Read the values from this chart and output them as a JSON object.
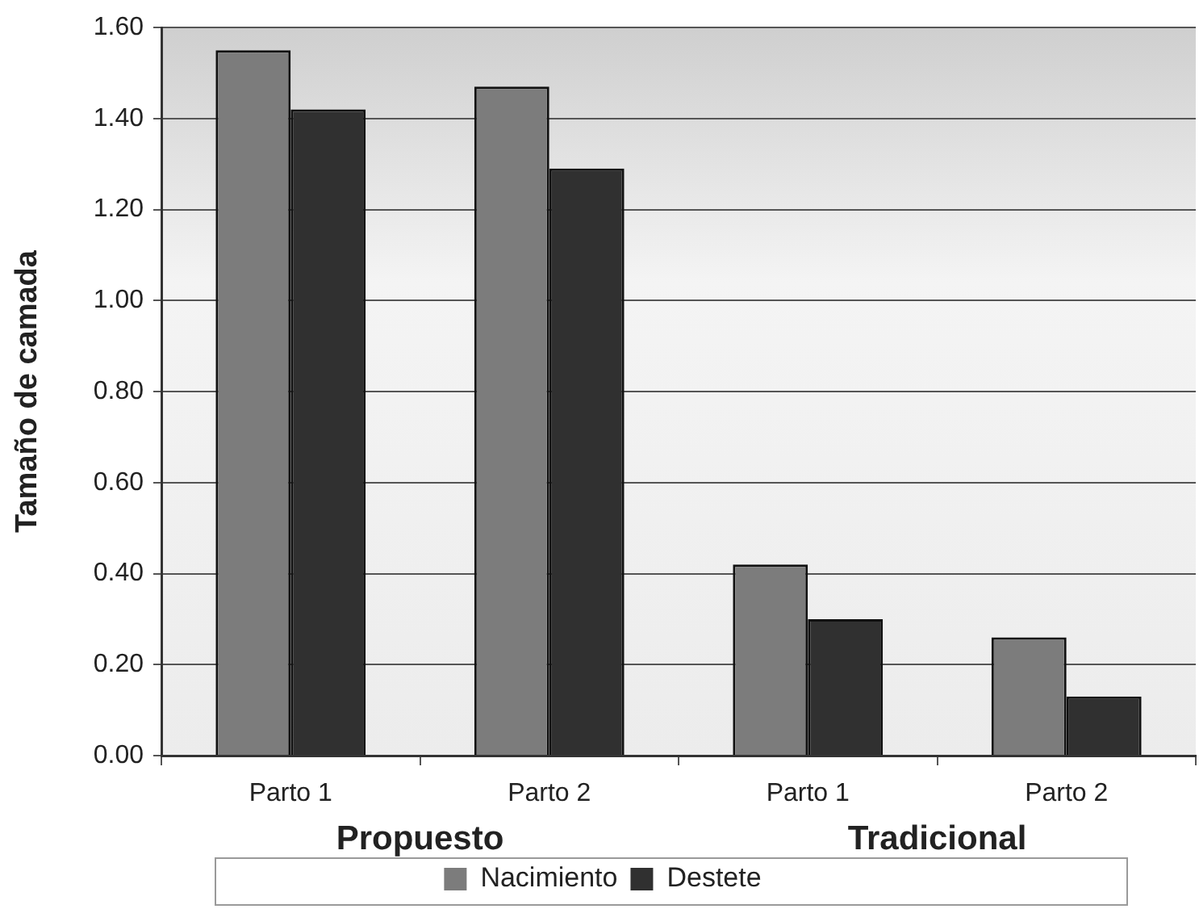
{
  "chart_data": {
    "type": "bar",
    "categories": [
      "Parto 1",
      "Parto 2",
      "Parto 1",
      "Parto 2"
    ],
    "series": [
      {
        "name": "Nacimiento",
        "color": "#7c7c7c",
        "values": [
          1.55,
          1.47,
          0.42,
          0.26
        ]
      },
      {
        "name": "Destete",
        "color": "#303030",
        "values": [
          1.42,
          1.29,
          0.3,
          0.13
        ]
      }
    ],
    "ylabel": "Tamaño de camada",
    "ylim": [
      0,
      1.6
    ],
    "yticks": [
      {
        "value": 0,
        "label": "0.00"
      },
      {
        "value": 0.2,
        "label": "0.20"
      },
      {
        "value": 0.4,
        "label": "0.40"
      },
      {
        "value": 0.6,
        "label": "0.60"
      },
      {
        "value": 0.8,
        "label": "0.80"
      },
      {
        "value": 1,
        "label": "1.00"
      },
      {
        "value": 1.2,
        "label": "1.20"
      },
      {
        "value": 1.4,
        "label": "1.40"
      },
      {
        "value": 1.6,
        "label": "1.60"
      }
    ],
    "annotations": [
      "Propuesto",
      "Tradicional"
    ],
    "grid": "y",
    "legend": "bottom"
  }
}
